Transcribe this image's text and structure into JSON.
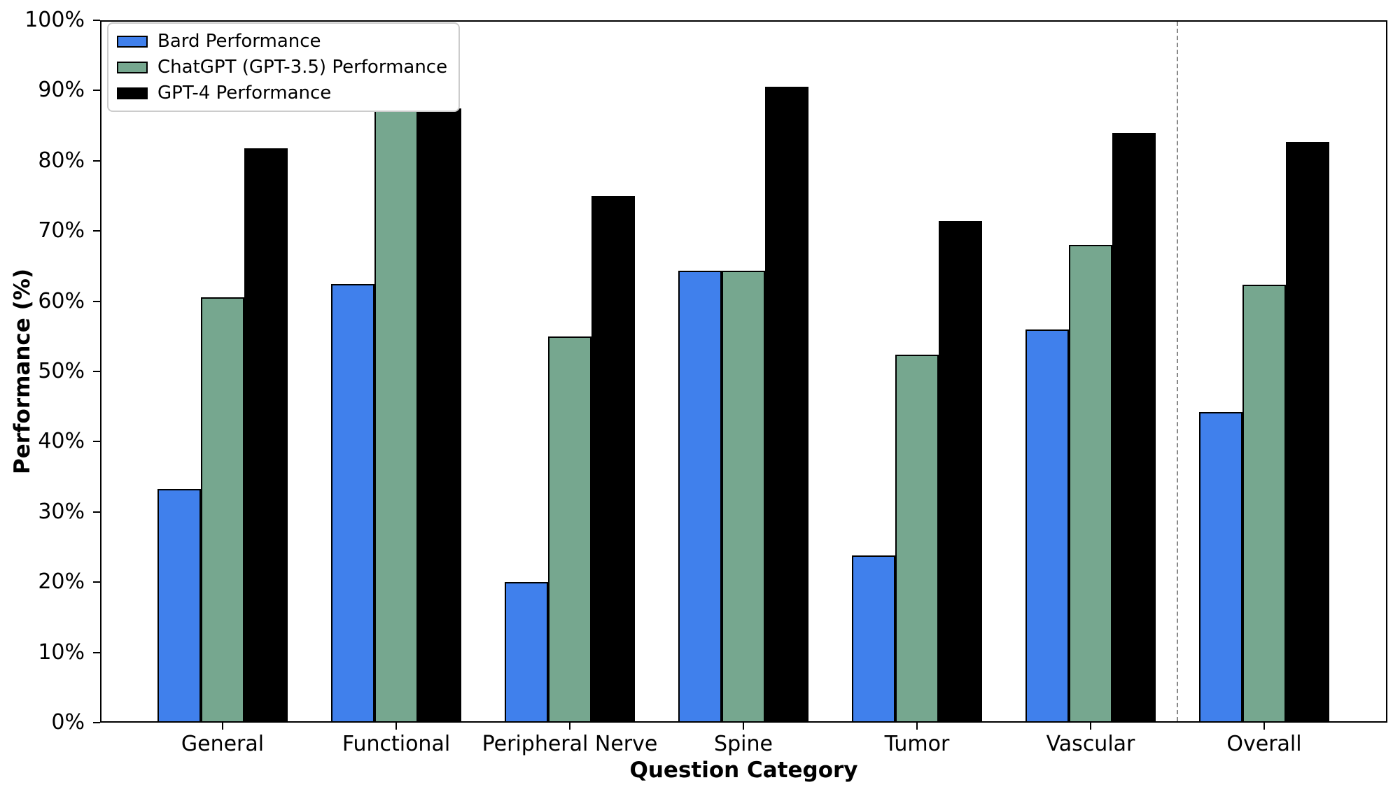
{
  "chart_data": {
    "type": "bar",
    "title": "",
    "xlabel": "Question Category",
    "ylabel": "Performance (%)",
    "categories": [
      "General",
      "Functional",
      "Peripheral Nerve",
      "Spine",
      "Tumor",
      "Vascular",
      "Overall"
    ],
    "series": [
      {
        "name": "Bard Performance",
        "color": "#4080ec",
        "values": [
          33.3,
          62.5,
          20.0,
          64.3,
          23.8,
          56.0,
          44.2
        ]
      },
      {
        "name": "ChatGPT (GPT-3.5) Performance",
        "color": "#76a78f",
        "values": [
          60.6,
          87.5,
          55.0,
          64.3,
          52.4,
          68.0,
          62.4
        ]
      },
      {
        "name": "GPT-4 Performance",
        "color": "#000000",
        "values": [
          81.8,
          87.5,
          75.0,
          90.5,
          71.4,
          84.0,
          82.7
        ]
      }
    ],
    "ylim": [
      0,
      100
    ],
    "ytick_step": 10,
    "ytick_labels": [
      "0%",
      "10%",
      "20%",
      "30%",
      "40%",
      "50%",
      "60%",
      "70%",
      "80%",
      "90%",
      "100%"
    ],
    "legend_position": "upper left",
    "grid": false,
    "bar_edge_color": "#000000",
    "separator_after_category": "Vascular",
    "separator_color": "#888888"
  }
}
